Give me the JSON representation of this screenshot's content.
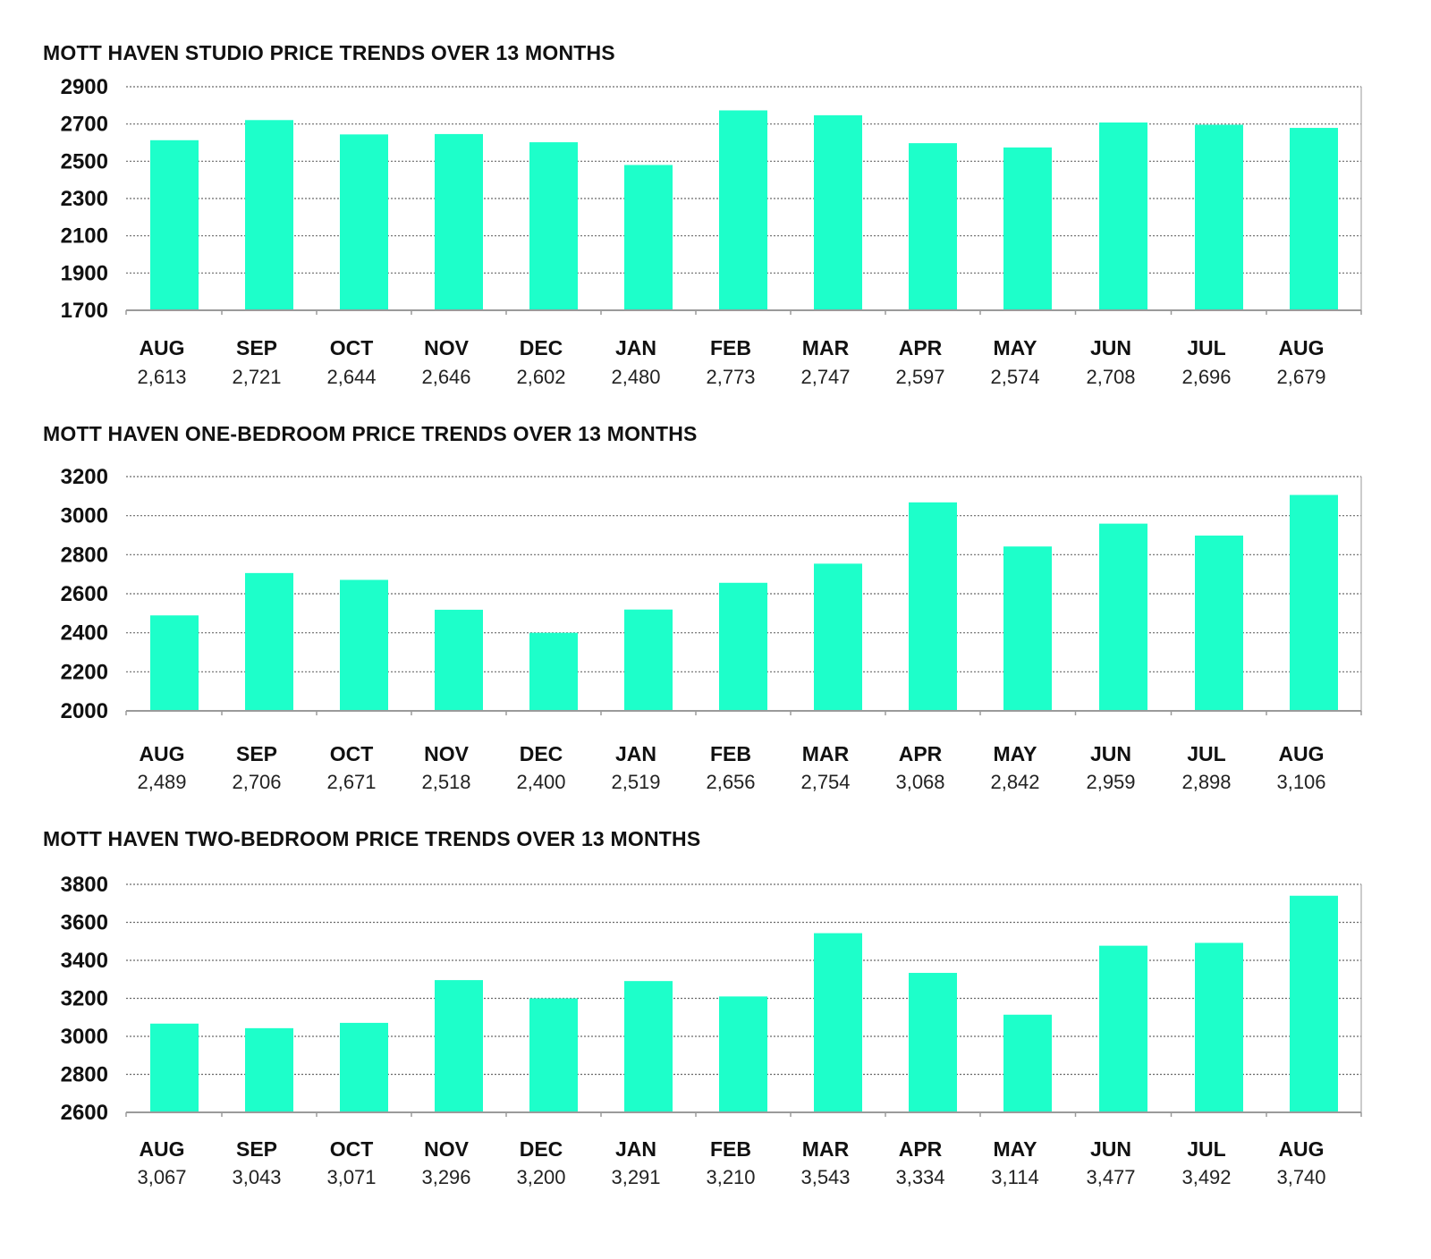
{
  "colors": {
    "bar": "#1dffca",
    "grid": "#6a6a6a",
    "axis": "#9a9a9a",
    "text": "#111111"
  },
  "chart_data": [
    {
      "type": "bar",
      "title": "MOTT HAVEN STUDIO PRICE TRENDS OVER 13 MONTHS",
      "categories": [
        "AUG",
        "SEP",
        "OCT",
        "NOV",
        "DEC",
        "JAN",
        "FEB",
        "MAR",
        "APR",
        "MAY",
        "JUN",
        "JUL",
        "AUG"
      ],
      "values": [
        2613,
        2721,
        2644,
        2646,
        2602,
        2480,
        2773,
        2747,
        2597,
        2574,
        2708,
        2696,
        2679
      ],
      "value_labels": [
        "2,613",
        "2,721",
        "2,644",
        "2,646",
        "2,602",
        "2,480",
        "2,773",
        "2,747",
        "2,597",
        "2,574",
        "2,708",
        "2,696",
        "2,679"
      ],
      "ylim": [
        1700,
        2900
      ],
      "yticks": [
        2900,
        2700,
        2500,
        2300,
        2100,
        1900,
        1700
      ],
      "xlabel": "",
      "ylabel": "",
      "grid": true
    },
    {
      "type": "bar",
      "title": "MOTT HAVEN ONE-BEDROOM PRICE TRENDS OVER 13 MONTHS",
      "categories": [
        "AUG",
        "SEP",
        "OCT",
        "NOV",
        "DEC",
        "JAN",
        "FEB",
        "MAR",
        "APR",
        "MAY",
        "JUN",
        "JUL",
        "AUG"
      ],
      "values": [
        2489,
        2706,
        2671,
        2518,
        2400,
        2519,
        2656,
        2754,
        3068,
        2842,
        2959,
        2898,
        3106
      ],
      "value_labels": [
        "2,489",
        "2,706",
        "2,671",
        "2,518",
        "2,400",
        "2,519",
        "2,656",
        "2,754",
        "3,068",
        "2,842",
        "2,959",
        "2,898",
        "3,106"
      ],
      "ylim": [
        2000,
        3200
      ],
      "yticks": [
        3200,
        3000,
        2800,
        2600,
        2400,
        2200,
        2000
      ],
      "xlabel": "",
      "ylabel": "",
      "grid": true
    },
    {
      "type": "bar",
      "title": "MOTT HAVEN TWO-BEDROOM PRICE TRENDS OVER 13 MONTHS",
      "categories": [
        "AUG",
        "SEP",
        "OCT",
        "NOV",
        "DEC",
        "JAN",
        "FEB",
        "MAR",
        "APR",
        "MAY",
        "JUN",
        "JUL",
        "AUG"
      ],
      "values": [
        3067,
        3043,
        3071,
        3296,
        3200,
        3291,
        3210,
        3543,
        3334,
        3114,
        3477,
        3492,
        3740
      ],
      "value_labels": [
        "3,067",
        "3,043",
        "3,071",
        "3,296",
        "3,200",
        "3,291",
        "3,210",
        "3,543",
        "3,334",
        "3,114",
        "3,477",
        "3,492",
        "3,740"
      ],
      "ylim": [
        2600,
        3800
      ],
      "yticks": [
        3800,
        3600,
        3400,
        3200,
        3000,
        2800,
        2600
      ],
      "xlabel": "",
      "ylabel": "",
      "grid": true
    }
  ]
}
